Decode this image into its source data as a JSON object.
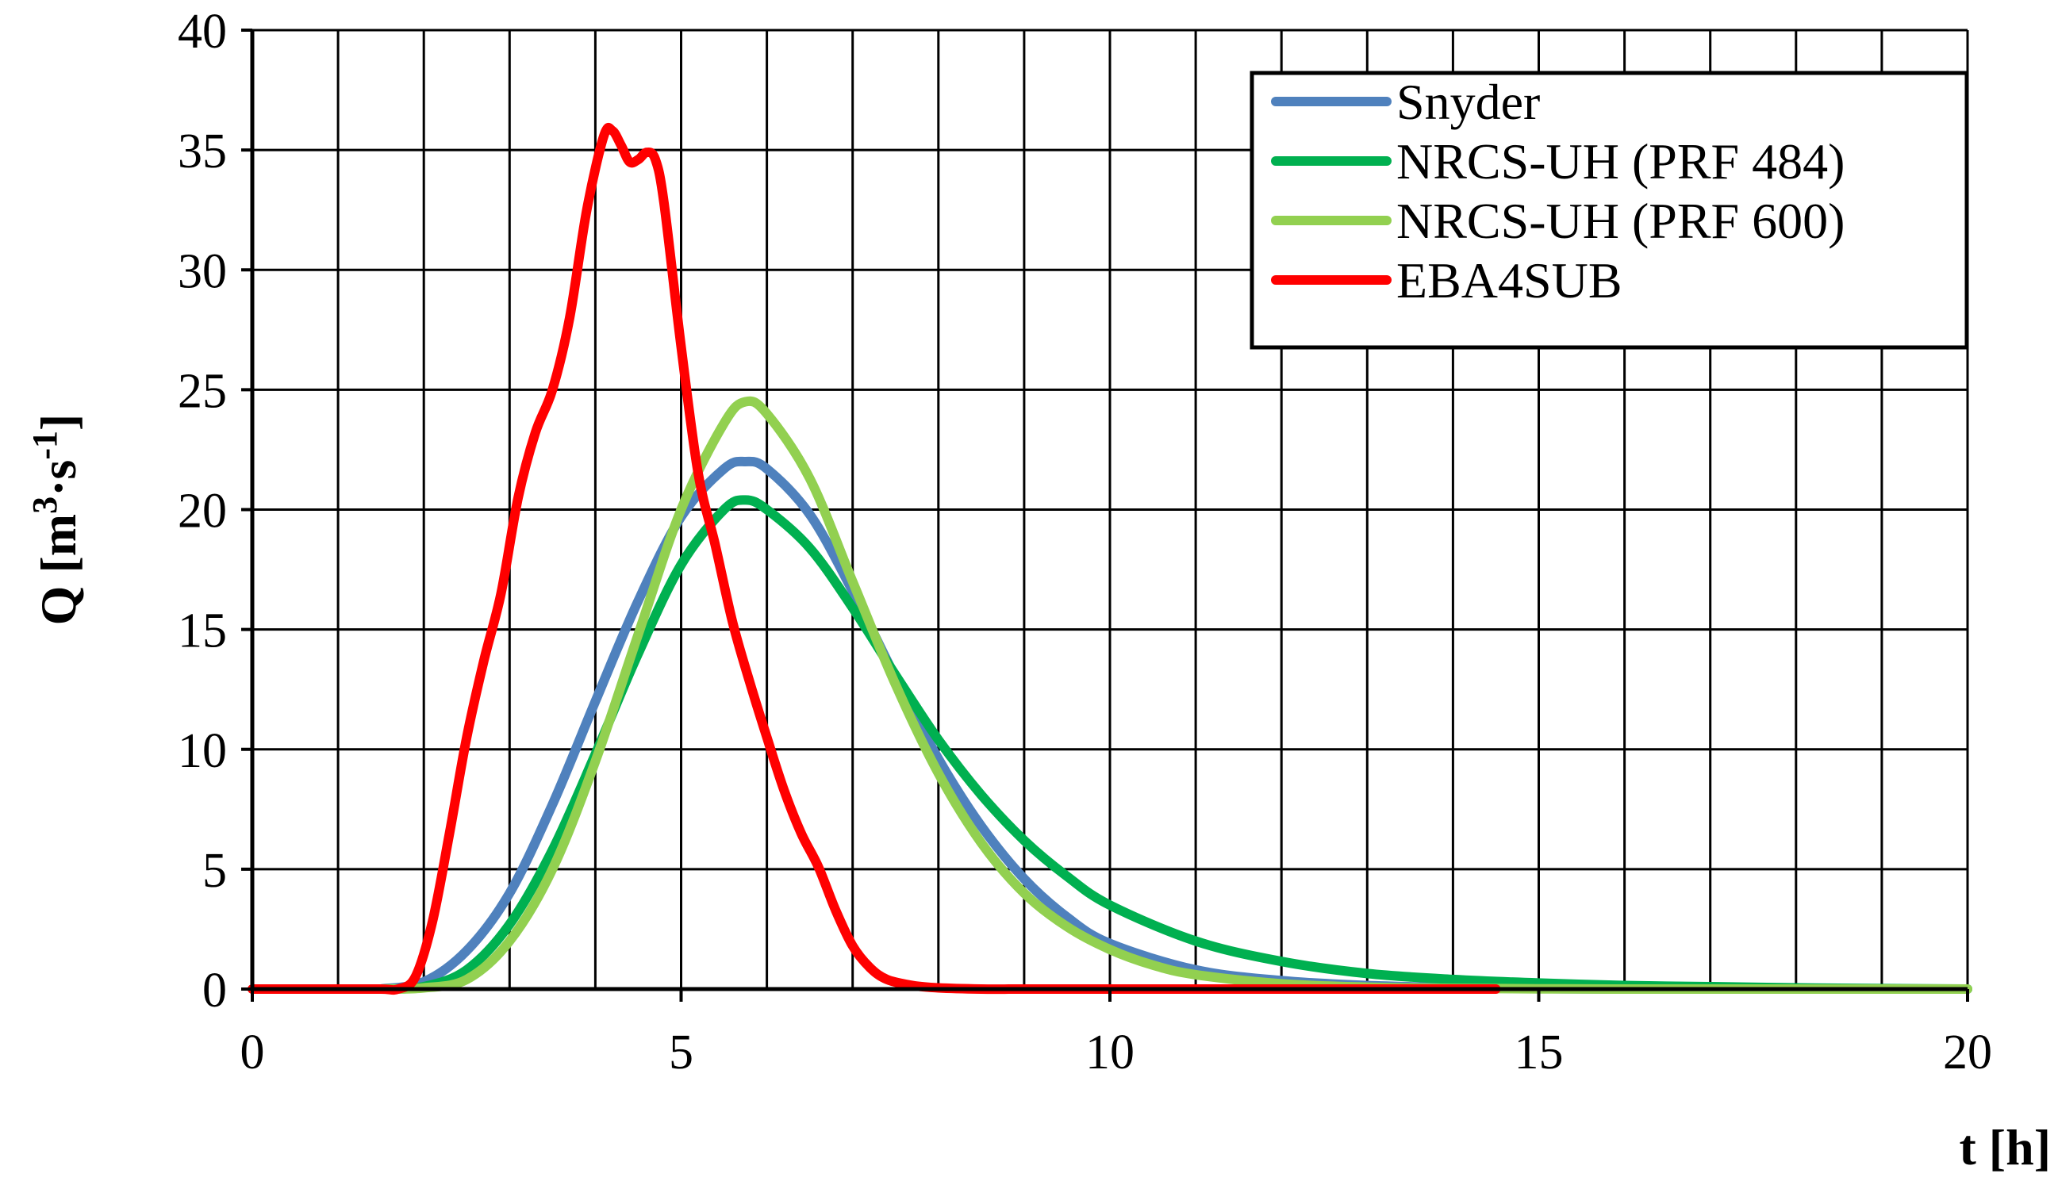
{
  "chart_data": {
    "type": "line",
    "title": "",
    "xlabel": "t [h]",
    "ylabel": "Q [m3·s-1]",
    "xlim": [
      0,
      20
    ],
    "ylim": [
      0,
      40
    ],
    "xticks": [
      0,
      5,
      10,
      15,
      20
    ],
    "yticks": [
      0,
      5,
      10,
      15,
      20,
      25,
      30,
      35,
      40
    ],
    "x_minor_grid_step": 1,
    "y_grid_step": 5,
    "grid": true,
    "legend_position": "top-right",
    "series": [
      {
        "name": "Snyder",
        "color": "#4f81bd",
        "x": [
          1.5,
          2.0,
          2.5,
          3.0,
          3.5,
          4.0,
          4.5,
          5.0,
          5.5,
          5.75,
          6.0,
          6.5,
          7.0,
          7.5,
          8.0,
          8.5,
          9.0,
          9.5,
          10.0,
          11.0,
          12.0,
          13.0,
          14.0,
          15.0,
          16.0,
          18.0,
          20.0
        ],
        "y": [
          0,
          0.3,
          1.6,
          4.0,
          7.7,
          12.0,
          16.2,
          19.7,
          21.7,
          22.0,
          21.7,
          19.8,
          16.6,
          13.0,
          9.6,
          6.8,
          4.6,
          3.0,
          1.9,
          0.8,
          0.35,
          0.15,
          0.06,
          0.02,
          0,
          0,
          0
        ]
      },
      {
        "name": "NRCS-UH (PRF 484)",
        "color": "#00b050",
        "x": [
          1.5,
          2.0,
          2.5,
          3.0,
          3.5,
          4.0,
          4.5,
          5.0,
          5.5,
          5.75,
          6.0,
          6.5,
          7.0,
          7.5,
          8.0,
          8.5,
          9.0,
          9.5,
          10.0,
          11.0,
          12.0,
          13.0,
          14.0,
          15.0,
          16.0,
          17.0,
          18.0,
          19.0,
          20.0
        ],
        "y": [
          0,
          0.1,
          0.8,
          2.7,
          5.8,
          9.8,
          14.0,
          17.7,
          20.0,
          20.4,
          20.0,
          18.4,
          15.9,
          13.1,
          10.4,
          8.1,
          6.2,
          4.7,
          3.5,
          2.0,
          1.15,
          0.65,
          0.4,
          0.25,
          0.15,
          0.1,
          0.05,
          0.02,
          0
        ]
      },
      {
        "name": "NRCS-UH (PRF 600)",
        "color": "#92d050",
        "x": [
          1.5,
          2.0,
          2.5,
          3.0,
          3.5,
          4.0,
          4.5,
          5.0,
          5.5,
          5.75,
          6.0,
          6.5,
          7.0,
          7.5,
          8.0,
          8.5,
          9.0,
          9.5,
          10.0,
          10.5,
          11.0,
          12.0,
          13.0,
          14.0,
          15.0,
          16.0,
          18.0,
          20.0
        ],
        "y": [
          0,
          0.05,
          0.4,
          2.0,
          5.0,
          9.5,
          14.8,
          20.0,
          23.6,
          24.5,
          24.0,
          21.3,
          17.0,
          12.7,
          9.0,
          6.1,
          4.0,
          2.6,
          1.65,
          1.0,
          0.6,
          0.22,
          0.08,
          0.03,
          0.01,
          0,
          0,
          0
        ]
      },
      {
        "name": "EBA4SUB",
        "color": "#ff0000",
        "x": [
          0,
          1.0,
          1.5,
          1.7,
          1.9,
          2.1,
          2.3,
          2.5,
          2.7,
          2.9,
          3.1,
          3.3,
          3.5,
          3.7,
          3.9,
          4.1,
          4.2,
          4.3,
          4.4,
          4.5,
          4.6,
          4.7,
          4.8,
          5.0,
          5.2,
          5.4,
          5.6,
          5.8,
          6.0,
          6.2,
          6.4,
          6.6,
          6.8,
          7.0,
          7.2,
          7.4,
          7.7,
          8.0,
          8.5,
          9.0,
          10.0,
          12.0,
          14.5
        ],
        "y": [
          0,
          0,
          0,
          0,
          0.5,
          2.8,
          6.5,
          10.5,
          13.7,
          16.5,
          20.5,
          23.2,
          25.0,
          28.0,
          32.5,
          35.6,
          35.8,
          35.2,
          34.5,
          34.6,
          34.9,
          34.6,
          32.8,
          26.8,
          21.5,
          18.5,
          15.3,
          12.8,
          10.5,
          8.3,
          6.5,
          5.1,
          3.3,
          1.8,
          0.9,
          0.4,
          0.15,
          0.05,
          0,
          0,
          0,
          0,
          0
        ]
      }
    ]
  }
}
